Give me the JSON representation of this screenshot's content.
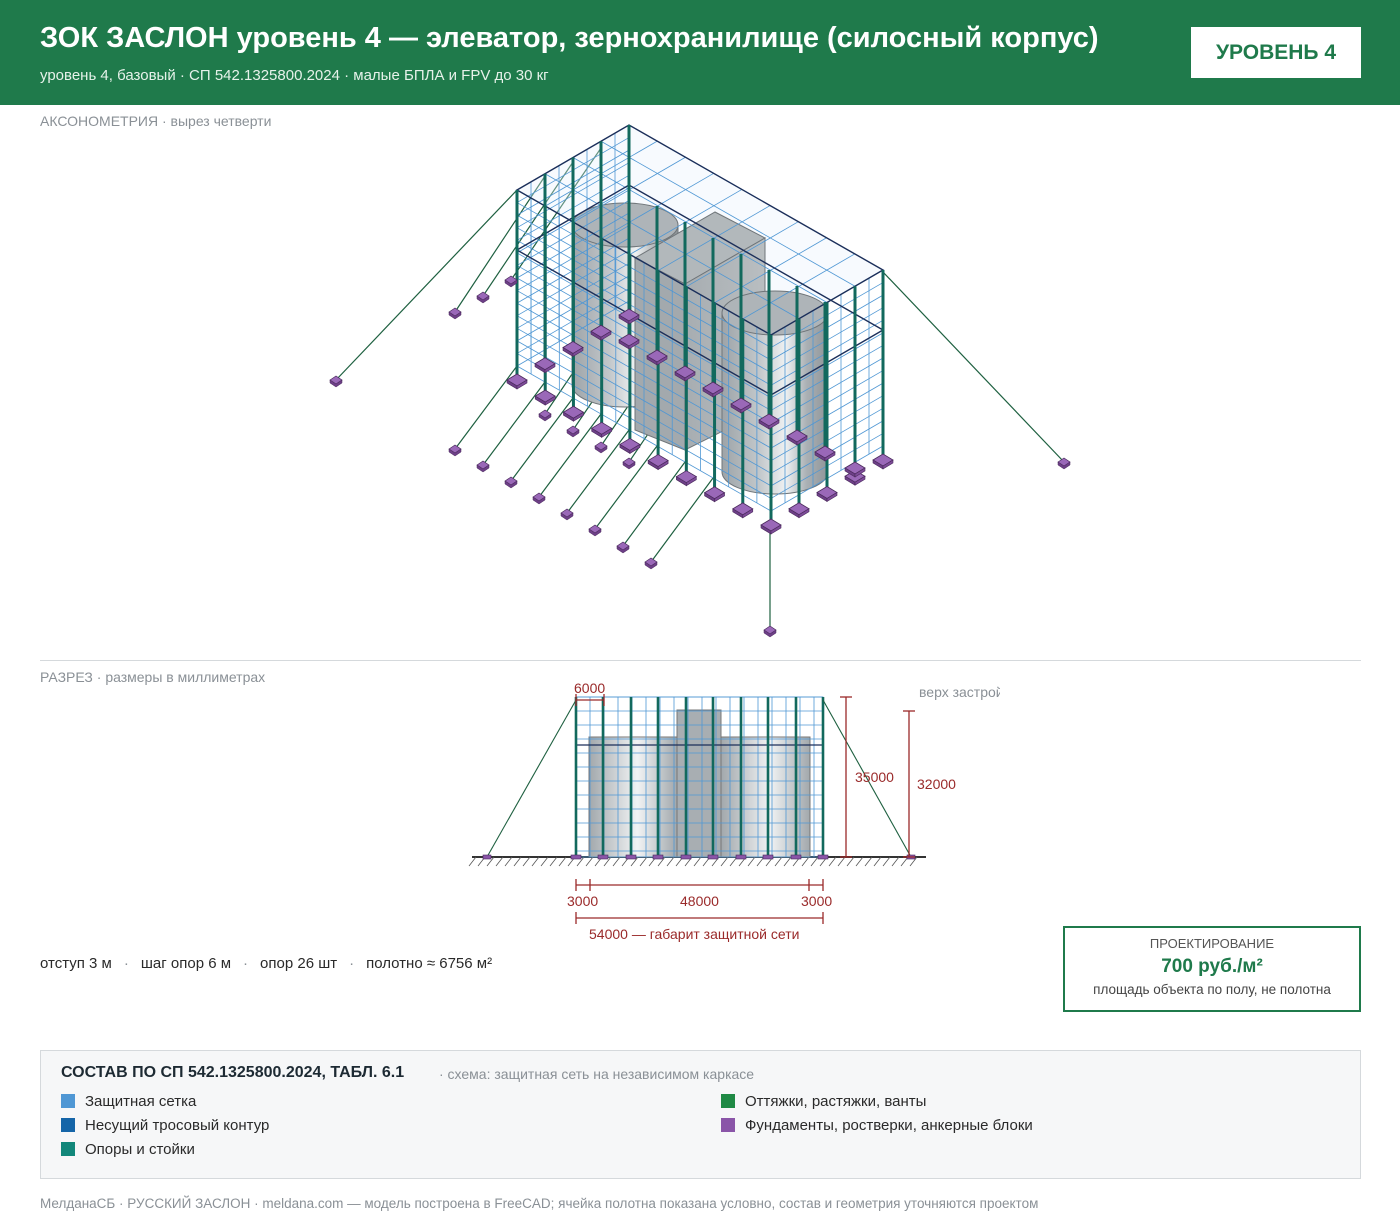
{
  "header": {
    "title": "ЗОК ЗАСЛОН уровень 4 — элеватор, зернохранилище (силосный корпус)",
    "subtitle": "уровень 4, базовый · СП 542.1325800.2024 · малые БПЛА и FPV до 30 кг",
    "badge": "УРОВЕНЬ 4"
  },
  "axo": {
    "label": "АКСОНОМЕТРИЯ",
    "sub": " · вырез четверти"
  },
  "section": {
    "label": "РАЗРЕЗ",
    "sub": " · размеры в миллиметрах",
    "dims": {
      "cell": "6000",
      "top_label": "верх застройки",
      "net_height": "35000",
      "building_height": "32000",
      "offset_left": "3000",
      "span": "48000",
      "offset_right": "3000",
      "overall": "54000 — габарит защитной сети"
    }
  },
  "stats": {
    "offset": "отступ 3 м",
    "pitch": "шаг опор 6 м",
    "supports": "опор 26 шт",
    "fabric": "полотно ≈ 6756 м²",
    "sep": "·"
  },
  "price": {
    "label": "ПРОЕКТИРОВАНИЕ",
    "value": "700 руб./м²",
    "note": "площадь объекта по полу, не полотна"
  },
  "legend": {
    "title": "СОСТАВ ПО СП 542.1325800.2024, ТАБЛ. 6.1",
    "note": "· схема: защитная сеть на независимом каркасе",
    "items": [
      {
        "label": "Защитная сетка",
        "color": "#4f97d4"
      },
      {
        "label": "Несущий тросовый контур",
        "color": "#1565a8"
      },
      {
        "label": "Опоры и стойки",
        "color": "#12877a"
      },
      {
        "label": "Оттяжки, растяжки, ванты",
        "color": "#1f8a45"
      },
      {
        "label": "Фундаменты, ростверки, анкерные блоки",
        "color": "#8a55a8"
      }
    ]
  },
  "footer": "МелданаСБ · РУССКИЙ ЗАСЛОН · meldana.com — модель построена в FreeCAD; ячейка полотна показана условно, состав и геометрия уточняются проектом"
}
